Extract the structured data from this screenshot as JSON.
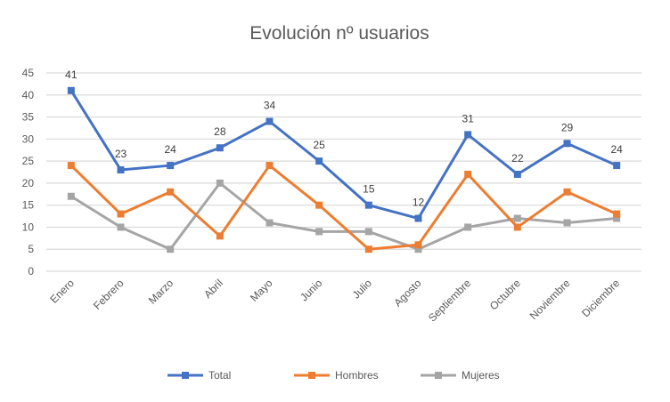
{
  "chart_data": {
    "type": "line",
    "title": "Evolución nº usuarios",
    "xlabel": "",
    "ylabel": "",
    "ylim": [
      0,
      45
    ],
    "ytick_step": 5,
    "grid": true,
    "legend_position": "bottom",
    "categories": [
      "Enero",
      "Febrero",
      "Marzo",
      "Abril",
      "Mayo",
      "Junio",
      "Julio",
      "Agosto",
      "Septiembre",
      "Octubre",
      "Noviembre",
      "Diciembre"
    ],
    "series": [
      {
        "name": "Total",
        "color": "#4472C4",
        "values": [
          41,
          23,
          24,
          28,
          34,
          25,
          15,
          12,
          31,
          22,
          29,
          24
        ],
        "show_labels": true
      },
      {
        "name": "Hombres",
        "color": "#ED7D31",
        "values": [
          24,
          13,
          18,
          8,
          24,
          15,
          5,
          6,
          22,
          10,
          18,
          13
        ],
        "show_labels": false
      },
      {
        "name": "Mujeres",
        "color": "#A5A5A5",
        "values": [
          17,
          10,
          5,
          20,
          11,
          9,
          9,
          5,
          10,
          12,
          11,
          12
        ],
        "show_labels": false
      }
    ]
  }
}
